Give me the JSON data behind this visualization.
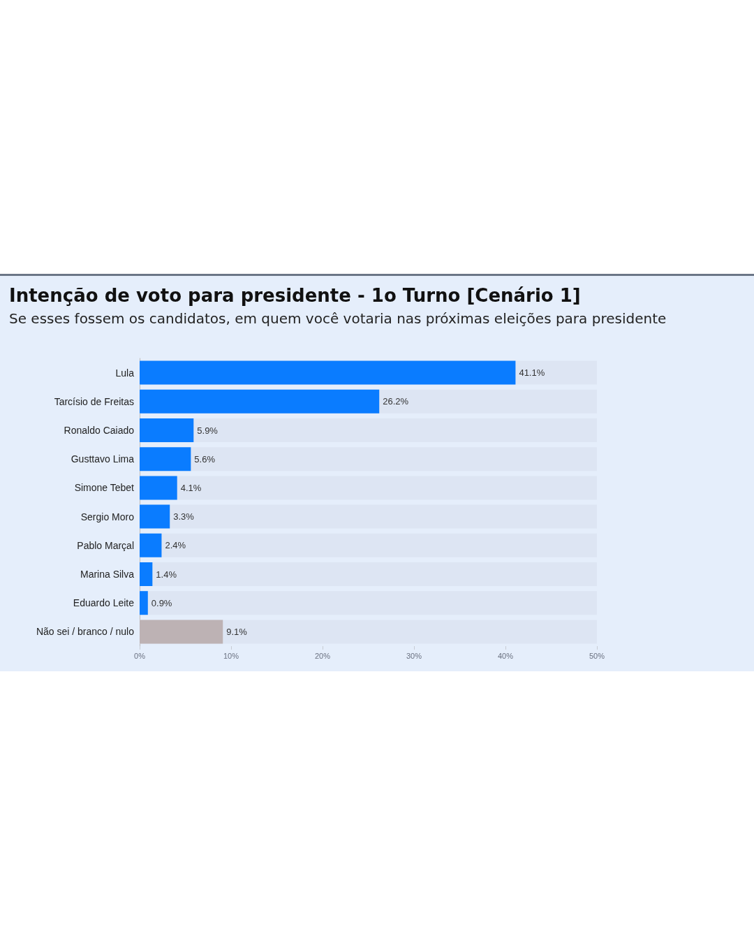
{
  "chart_data": {
    "type": "bar",
    "orientation": "horizontal",
    "title": "Intenção de voto para presidente - 1o Turno [Cenário 1]",
    "subtitle": "Se esses fossem os candidatos, em quem você votaria nas próximas eleições para presidente",
    "categories": [
      "Lula",
      "Tarcísio de Freitas",
      "Ronaldo Caiado",
      "Gusttavo Lima",
      "Simone Tebet",
      "Sergio Moro",
      "Pablo Marçal",
      "Marina Silva",
      "Eduardo Leite",
      "Não sei / branco / nulo"
    ],
    "values": [
      41.1,
      26.2,
      5.9,
      5.6,
      4.1,
      3.3,
      2.4,
      1.4,
      0.9,
      9.1
    ],
    "colors": [
      "#0a7cff",
      "#0a7cff",
      "#0a7cff",
      "#0a7cff",
      "#0a7cff",
      "#0a7cff",
      "#0a7cff",
      "#0a7cff",
      "#0a7cff",
      "#bdb2b4"
    ],
    "value_labels": [
      "41.1%",
      "26.2%",
      "5.9%",
      "5.6%",
      "4.1%",
      "3.3%",
      "2.4%",
      "1.4%",
      "0.9%",
      "9.1%"
    ],
    "xlim": [
      0,
      50
    ],
    "xticks": [
      {
        "value": 0,
        "label": "0%"
      },
      {
        "value": 10,
        "label": "10%"
      },
      {
        "value": 20,
        "label": "20%"
      },
      {
        "value": 30,
        "label": "30%"
      },
      {
        "value": 40,
        "label": "40%"
      },
      {
        "value": 50,
        "label": "50%"
      }
    ],
    "grid": false
  }
}
